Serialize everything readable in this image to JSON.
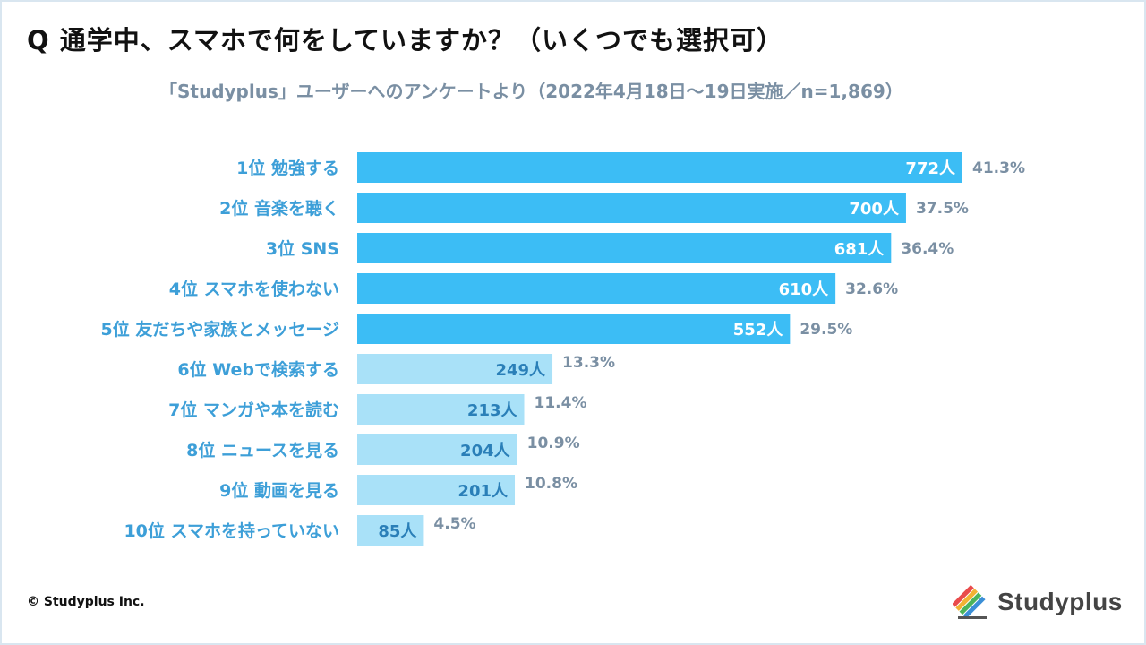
{
  "title": "Q 通学中、スマホで何をしていますか？（いくつでも選択可）",
  "subtitle": "「Studyplus」ユーザーへのアンケートより（2022年4月18日～19日実施／n=1,869）",
  "copyright": "© Studyplus Inc.",
  "logo": {
    "text": "Studyplus",
    "icon": "pencil-stripes-icon"
  },
  "colors": {
    "top5": "#3cbdf5",
    "rest": "#a9e1f8",
    "category": "#3d9fd8",
    "percent": "#7a8fa3"
  },
  "chart_data": {
    "type": "bar",
    "orientation": "horizontal",
    "title": "Q 通学中、スマホで何をしていますか？（いくつでも選択可）",
    "categories": [
      "1位 勉強する",
      "2位 音楽を聴く",
      "3位 SNS",
      "4位 スマホを使わない",
      "5位 友だちや家族とメッセージ",
      "6位 Webで検索する",
      "7位 マンガや本を読む",
      "8位 ニュースを見る",
      "9位 動画を見る",
      "10位 スマホを持っていない"
    ],
    "values": [
      772,
      700,
      681,
      610,
      552,
      249,
      213,
      204,
      201,
      85
    ],
    "value_labels": [
      "772人",
      "700人",
      "681人",
      "610人",
      "552人",
      "249人",
      "213人",
      "204人",
      "201人",
      "85人"
    ],
    "percent_labels": [
      "41.3%",
      "37.5%",
      "36.4%",
      "32.6%",
      "29.5%",
      "13.3%",
      "11.4%",
      "10.9%",
      "10.8%",
      "4.5%"
    ],
    "highlight_top": 5,
    "xlim": [
      0,
      800
    ],
    "grid": false
  }
}
